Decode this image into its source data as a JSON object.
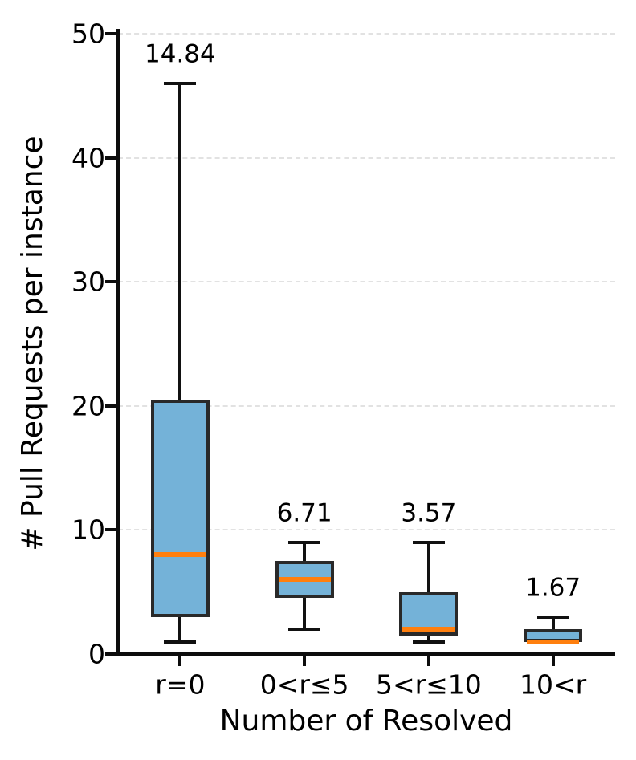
{
  "figure": {
    "background": "#ffffff"
  },
  "chart_data": {
    "type": "boxplot",
    "title": "",
    "xlabel": "Number of Resolved",
    "ylabel": "# Pull Requests per instance",
    "categories": [
      "r=0",
      "0<r≤5",
      "5<r≤10",
      "10<r"
    ],
    "series": [
      {
        "category": "r=0",
        "whisker_low": 1,
        "q1": 3,
        "median": 8,
        "q3": 20.5,
        "whisker_high": 46,
        "mean_label": "14.84"
      },
      {
        "category": "0<r≤5",
        "whisker_low": 2,
        "q1": 4.5,
        "median": 6,
        "q3": 7.5,
        "whisker_high": 9,
        "mean_label": "6.71"
      },
      {
        "category": "5<r≤10",
        "whisker_low": 1,
        "q1": 1.5,
        "median": 2,
        "q3": 5,
        "whisker_high": 9,
        "mean_label": "3.57"
      },
      {
        "category": "10<r",
        "whisker_low": 1,
        "q1": 1,
        "median": 1,
        "q3": 2,
        "whisker_high": 3,
        "mean_label": "1.67"
      }
    ],
    "ylim": [
      0,
      50
    ],
    "yticks": [
      0,
      10,
      20,
      30,
      40,
      50
    ],
    "grid": "horizontal dashed at yticks above 0",
    "legend": "none",
    "colors": {
      "box_fill": "#74b2d8",
      "box_edge": "#292929",
      "median": "#ff7f0e",
      "whisker": "#111111",
      "grid": "#e2e2e2",
      "text": "#000000"
    }
  }
}
